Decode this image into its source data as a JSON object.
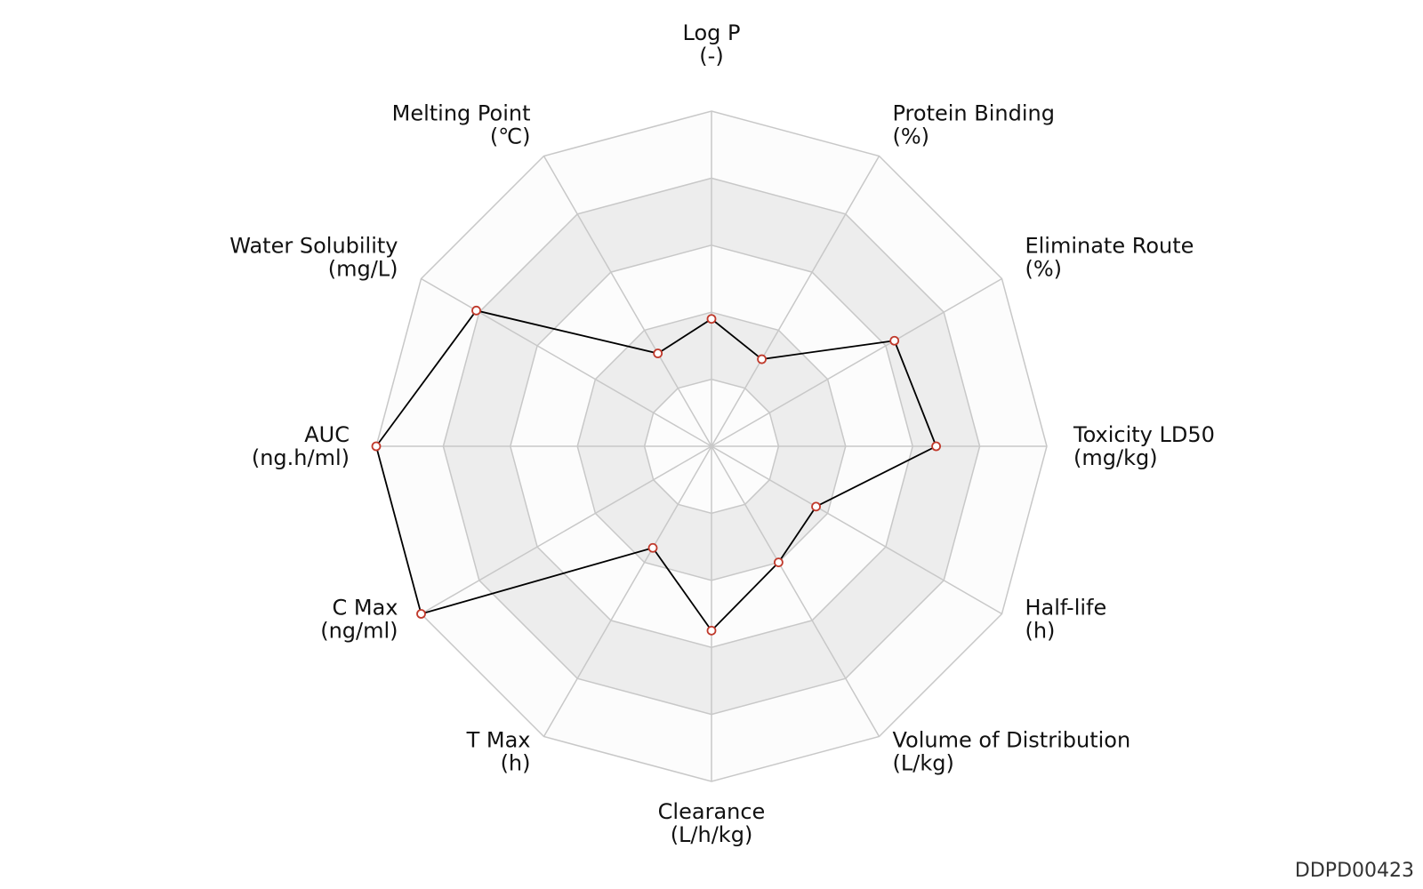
{
  "chart_data": {
    "type": "radar",
    "levels": 5,
    "axes": [
      {
        "name": "Log P",
        "unit": "(-)"
      },
      {
        "name": "Protein Binding",
        "unit": "(%)"
      },
      {
        "name": "Eliminate Route",
        "unit": "(%)"
      },
      {
        "name": "Toxicity LD50",
        "unit": "(mg/kg)"
      },
      {
        "name": "Half-life",
        "unit": "(h)"
      },
      {
        "name": "Volume of Distribution",
        "unit": "(L/kg)"
      },
      {
        "name": "Clearance",
        "unit": "(L/h/kg)"
      },
      {
        "name": "T Max",
        "unit": "(h)"
      },
      {
        "name": "C Max",
        "unit": "(ng/ml)"
      },
      {
        "name": "AUC",
        "unit": "(ng.h/ml)"
      },
      {
        "name": "Water Solubility",
        "unit": "(mg/L)"
      },
      {
        "name": "Melting Point",
        "unit": "(℃)"
      }
    ],
    "values": [
      0.38,
      0.3,
      0.63,
      0.67,
      0.36,
      0.4,
      0.55,
      0.35,
      1.0,
      1.0,
      0.81,
      0.32
    ],
    "range": [
      0,
      1
    ]
  },
  "colors": {
    "band_light": "#fcfcfc",
    "band_dark": "#ededed",
    "grid": "#c8c8c8",
    "line": "#000000",
    "marker_edge": "#c0392b"
  },
  "watermark": "DDPD00423"
}
